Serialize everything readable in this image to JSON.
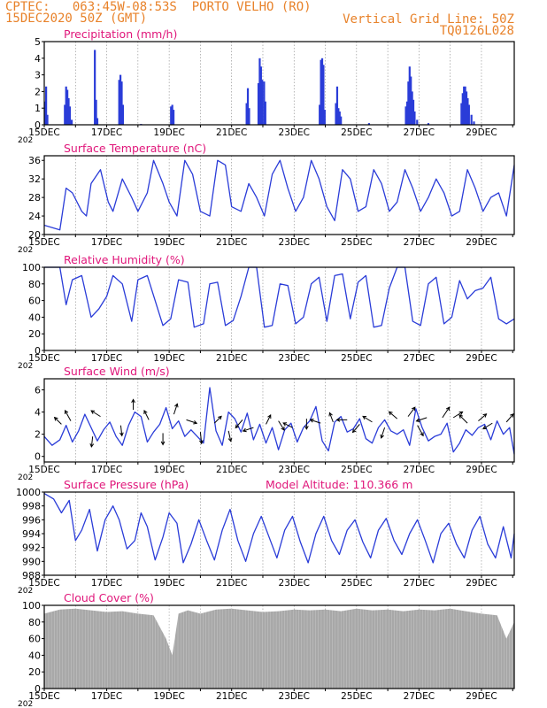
{
  "header": {
    "station": "CPTEC:   063:45W-08:53S  PORTO VELHO (RO)",
    "run": "15DEC2020 50Z (GMT)",
    "grid_note": "Vertical Grid Line: 50Z",
    "code": "TQ0126L028"
  },
  "colors": {
    "header": "#e8822a",
    "title": "#e0167a",
    "series": "#2a3cd8",
    "cloud": "#a8a8a8",
    "grid": "#888888"
  },
  "x_labels": [
    "15DEC",
    "17DEC",
    "19DEC",
    "21DEC",
    "23DEC",
    "25DEC",
    "27DEC",
    "29DEC"
  ],
  "x_year_fragment": "202",
  "chart_data": [
    {
      "id": "precip",
      "type": "bar",
      "title": "Precipitation (mm/h)",
      "ylim": [
        0,
        5
      ],
      "yticks": [
        0,
        1,
        2,
        3,
        4,
        5
      ],
      "x_unit": "days since 15DEC",
      "bars": [
        [
          0.02,
          1.4
        ],
        [
          0.06,
          2.3
        ],
        [
          0.1,
          0.6
        ],
        [
          0.66,
          1.2
        ],
        [
          0.7,
          2.3
        ],
        [
          0.74,
          2.1
        ],
        [
          0.78,
          1.6
        ],
        [
          0.82,
          1.1
        ],
        [
          0.88,
          0.3
        ],
        [
          1.62,
          4.5
        ],
        [
          1.66,
          1.5
        ],
        [
          1.7,
          0.4
        ],
        [
          2.4,
          2.7
        ],
        [
          2.44,
          3.0
        ],
        [
          2.48,
          2.6
        ],
        [
          2.52,
          1.2
        ],
        [
          4.06,
          1.1
        ],
        [
          4.1,
          1.2
        ],
        [
          4.14,
          0.9
        ],
        [
          6.48,
          1.3
        ],
        [
          6.52,
          2.2
        ],
        [
          6.56,
          1.0
        ],
        [
          6.86,
          2.5
        ],
        [
          6.9,
          4.0
        ],
        [
          6.94,
          3.5
        ],
        [
          6.98,
          2.7
        ],
        [
          7.04,
          2.6
        ],
        [
          7.08,
          1.4
        ],
        [
          8.82,
          1.2
        ],
        [
          8.86,
          3.9
        ],
        [
          8.9,
          4.0
        ],
        [
          8.94,
          3.6
        ],
        [
          8.98,
          0.9
        ],
        [
          9.34,
          1.3
        ],
        [
          9.38,
          2.3
        ],
        [
          9.42,
          1.0
        ],
        [
          9.46,
          0.8
        ],
        [
          9.5,
          0.5
        ],
        [
          11.58,
          1.1
        ],
        [
          11.62,
          1.4
        ],
        [
          11.66,
          2.6
        ],
        [
          11.7,
          3.5
        ],
        [
          11.74,
          2.9
        ],
        [
          11.78,
          2.0
        ],
        [
          11.82,
          1.5
        ],
        [
          11.86,
          0.8
        ],
        [
          11.94,
          0.3
        ],
        [
          13.36,
          1.3
        ],
        [
          13.4,
          1.9
        ],
        [
          13.44,
          2.3
        ],
        [
          13.48,
          2.3
        ],
        [
          13.52,
          2.0
        ],
        [
          13.56,
          1.6
        ],
        [
          13.6,
          1.2
        ],
        [
          13.68,
          0.6
        ],
        [
          13.76,
          0.2
        ],
        [
          12.3,
          0.1
        ],
        [
          3.1,
          0.05
        ],
        [
          10.4,
          0.1
        ]
      ]
    },
    {
      "id": "temp",
      "type": "line",
      "title": "Surface Temperature (nC)",
      "ylim": [
        20,
        37
      ],
      "yticks": [
        20,
        24,
        28,
        32,
        36
      ],
      "x": [
        0,
        0.5,
        0.7,
        0.9,
        1.2,
        1.35,
        1.5,
        1.8,
        2.05,
        2.2,
        2.5,
        2.8,
        3.0,
        3.3,
        3.5,
        3.8,
        4.0,
        4.25,
        4.5,
        4.75,
        5.0,
        5.3,
        5.55,
        5.8,
        6.0,
        6.3,
        6.55,
        6.8,
        7.05,
        7.3,
        7.55,
        7.8,
        8.05,
        8.3,
        8.55,
        8.8,
        9.05,
        9.3,
        9.55,
        9.8,
        10.05,
        10.3,
        10.55,
        10.8,
        11.05,
        11.3,
        11.55,
        11.8,
        12.05,
        12.3,
        12.55,
        12.8,
        13.05,
        13.3,
        13.55,
        13.8,
        14.05,
        14.3,
        14.55,
        14.8,
        15.05
      ],
      "y": [
        22,
        21,
        30,
        29,
        25,
        24,
        31,
        34,
        27,
        25,
        32,
        28,
        25,
        29,
        36,
        31,
        27,
        24,
        36,
        33,
        25,
        24,
        36,
        35,
        26,
        25,
        31,
        28,
        24,
        33,
        36,
        30,
        25,
        28,
        36,
        32,
        26,
        23,
        34,
        32,
        25,
        26,
        34,
        31,
        25,
        27,
        34,
        30,
        25,
        28,
        32,
        29,
        24,
        25,
        34,
        30,
        25,
        28,
        29,
        24,
        35
      ]
    },
    {
      "id": "rh",
      "type": "line",
      "title": "Relative Humidity (%)",
      "ylim": [
        0,
        100
      ],
      "yticks": [
        0,
        20,
        40,
        60,
        80,
        100
      ],
      "x": [
        0,
        0.5,
        0.7,
        0.9,
        1.2,
        1.5,
        1.75,
        2.0,
        2.2,
        2.5,
        2.8,
        3.0,
        3.3,
        3.55,
        3.8,
        4.05,
        4.3,
        4.6,
        4.8,
        5.1,
        5.3,
        5.55,
        5.8,
        6.05,
        6.3,
        6.55,
        6.8,
        7.05,
        7.3,
        7.55,
        7.8,
        8.05,
        8.3,
        8.55,
        8.8,
        9.05,
        9.3,
        9.55,
        9.8,
        10.05,
        10.3,
        10.55,
        10.8,
        11.05,
        11.3,
        11.55,
        11.8,
        12.05,
        12.3,
        12.55,
        12.8,
        13.05,
        13.3,
        13.55,
        13.8,
        14.05,
        14.3,
        14.55,
        14.8,
        15.05
      ],
      "y": [
        100,
        100,
        55,
        85,
        90,
        40,
        50,
        65,
        90,
        80,
        35,
        85,
        90,
        60,
        30,
        38,
        85,
        82,
        28,
        32,
        80,
        82,
        30,
        36,
        65,
        100,
        100,
        28,
        30,
        80,
        78,
        32,
        40,
        80,
        88,
        35,
        90,
        92,
        38,
        82,
        90,
        28,
        30,
        75,
        100,
        100,
        35,
        30,
        80,
        88,
        32,
        40,
        84,
        62,
        72,
        75,
        88,
        38,
        32,
        38
      ]
    },
    {
      "id": "wind",
      "type": "line",
      "title": "Surface Wind (m/s)",
      "ylim": [
        -0.5,
        7
      ],
      "yticks": [
        0,
        2,
        4,
        6
      ],
      "x": [
        0,
        0.25,
        0.5,
        0.7,
        0.9,
        1.1,
        1.3,
        1.5,
        1.7,
        1.9,
        2.1,
        2.3,
        2.5,
        2.7,
        2.9,
        3.1,
        3.3,
        3.5,
        3.7,
        3.9,
        4.1,
        4.3,
        4.5,
        4.7,
        4.9,
        5.1,
        5.3,
        5.5,
        5.7,
        5.9,
        6.1,
        6.3,
        6.5,
        6.7,
        6.9,
        7.1,
        7.3,
        7.5,
        7.7,
        7.9,
        8.1,
        8.3,
        8.5,
        8.7,
        8.9,
        9.1,
        9.3,
        9.5,
        9.7,
        9.9,
        10.1,
        10.3,
        10.5,
        10.7,
        10.9,
        11.1,
        11.3,
        11.5,
        11.7,
        11.9,
        12.1,
        12.3,
        12.5,
        12.7,
        12.9,
        13.1,
        13.3,
        13.5,
        13.7,
        13.9,
        14.1,
        14.3,
        14.5,
        14.7,
        14.9,
        15.05
      ],
      "y": [
        1.8,
        1.0,
        1.5,
        2.8,
        1.3,
        2.3,
        3.8,
        2.6,
        1.4,
        2.4,
        3.1,
        1.8,
        1.0,
        2.8,
        4.0,
        3.6,
        1.3,
        2.2,
        2.9,
        4.4,
        2.5,
        3.2,
        1.8,
        2.4,
        1.8,
        1.2,
        6.2,
        2.3,
        1.0,
        4.0,
        3.4,
        2.2,
        3.9,
        1.5,
        2.9,
        1.2,
        2.6,
        0.6,
        2.4,
        3.0,
        1.3,
        2.6,
        3.2,
        4.5,
        1.4,
        0.5,
        3.1,
        3.6,
        2.2,
        2.5,
        3.4,
        1.6,
        1.2,
        2.6,
        3.3,
        2.3,
        2.0,
        2.4,
        1.0,
        4.3,
        2.6,
        1.4,
        1.8,
        2.0,
        3.0,
        0.4,
        1.2,
        2.4,
        1.9,
        2.6,
        2.9,
        1.5,
        3.2,
        2.0,
        2.6,
        0.2
      ],
      "arrows": [
        [
          0.55,
          2.9,
          -0.6,
          0.6
        ],
        [
          0.85,
          3.2,
          -0.5,
          0.9
        ],
        [
          1.55,
          1.8,
          -0.1,
          -0.9
        ],
        [
          1.8,
          3.6,
          -0.8,
          0.5
        ],
        [
          2.45,
          2.8,
          0.1,
          -0.9
        ],
        [
          2.85,
          4.2,
          0.0,
          0.9
        ],
        [
          3.35,
          3.3,
          -0.4,
          0.8
        ],
        [
          3.8,
          2.1,
          0.0,
          -1.0
        ],
        [
          4.15,
          3.8,
          0.3,
          0.9
        ],
        [
          4.55,
          3.3,
          0.9,
          -0.3
        ],
        [
          5.0,
          2.2,
          0.1,
          -1.0
        ],
        [
          5.45,
          3.0,
          0.6,
          0.6
        ],
        [
          5.9,
          2.3,
          0.2,
          -0.9
        ],
        [
          6.35,
          3.3,
          -0.6,
          -0.7
        ],
        [
          6.7,
          2.6,
          -0.9,
          -0.3
        ],
        [
          7.1,
          2.9,
          0.4,
          0.8
        ],
        [
          7.5,
          3.2,
          0.5,
          -0.8
        ],
        [
          7.95,
          2.6,
          -0.8,
          0.4
        ],
        [
          8.4,
          3.4,
          0.0,
          -0.9
        ],
        [
          8.85,
          3.0,
          -0.9,
          0.3
        ],
        [
          9.25,
          3.1,
          -0.3,
          0.8
        ],
        [
          9.7,
          3.3,
          -0.9,
          0.0
        ],
        [
          10.1,
          2.9,
          -0.6,
          -0.7
        ],
        [
          10.5,
          3.1,
          -0.8,
          0.5
        ],
        [
          10.9,
          2.6,
          -0.3,
          -0.9
        ],
        [
          11.3,
          3.4,
          -0.7,
          0.6
        ],
        [
          11.65,
          3.6,
          0.6,
          0.8
        ],
        [
          11.95,
          2.8,
          0.5,
          -0.9
        ],
        [
          12.25,
          3.5,
          -0.9,
          -0.3
        ],
        [
          12.75,
          3.5,
          0.6,
          0.9
        ],
        [
          13.1,
          3.5,
          0.8,
          0.5
        ],
        [
          13.55,
          3.0,
          -0.7,
          0.7
        ],
        [
          13.9,
          3.2,
          0.7,
          0.6
        ],
        [
          14.35,
          3.0,
          -0.8,
          -0.5
        ],
        [
          14.8,
          3.1,
          0.6,
          0.7
        ]
      ]
    },
    {
      "id": "press",
      "type": "line",
      "title": "Surface Pressure (hPa)",
      "annotation": "Model Altitude: 110.366 m",
      "ylim": [
        988,
        1000
      ],
      "yticks": [
        988,
        990,
        992,
        994,
        996,
        998,
        1000
      ],
      "x": [
        0,
        0.3,
        0.55,
        0.8,
        1.0,
        1.2,
        1.45,
        1.7,
        1.95,
        2.2,
        2.4,
        2.65,
        2.9,
        3.1,
        3.3,
        3.55,
        3.8,
        4.0,
        4.25,
        4.45,
        4.7,
        4.95,
        5.2,
        5.45,
        5.7,
        5.95,
        6.2,
        6.45,
        6.7,
        6.95,
        7.2,
        7.45,
        7.7,
        7.95,
        8.2,
        8.45,
        8.7,
        8.95,
        9.2,
        9.45,
        9.7,
        9.95,
        10.2,
        10.45,
        10.7,
        10.95,
        11.2,
        11.45,
        11.7,
        11.95,
        12.2,
        12.45,
        12.7,
        12.95,
        13.2,
        13.45,
        13.7,
        13.95,
        14.2,
        14.45,
        14.7,
        14.95,
        15.05
      ],
      "y": [
        999.8,
        999,
        997,
        998.8,
        993,
        994.5,
        997.5,
        991.5,
        996,
        998,
        996,
        991.8,
        993,
        997,
        995,
        990.2,
        993.5,
        997,
        995.5,
        989.8,
        992.5,
        996,
        993,
        990.2,
        994.5,
        997.5,
        993,
        990,
        994,
        996.5,
        993.5,
        990.5,
        994.5,
        996.5,
        992.8,
        989.8,
        994,
        996.5,
        993,
        991,
        994.5,
        996,
        992.8,
        990.5,
        994.5,
        996.2,
        993,
        991,
        994,
        996,
        993,
        989.8,
        994,
        995.5,
        992.5,
        990.5,
        994.5,
        996.5,
        992.5,
        990.5,
        995,
        990.5,
        994
      ]
    },
    {
      "id": "cloud",
      "type": "area",
      "title": "Cloud Cover (%)",
      "ylim": [
        0,
        100
      ],
      "yticks": [
        0,
        20,
        40,
        60,
        80,
        100
      ],
      "x": [
        0,
        0.5,
        1.0,
        1.5,
        2.0,
        2.5,
        3.0,
        3.5,
        3.9,
        4.1,
        4.3,
        4.6,
        5.0,
        5.5,
        6.0,
        6.5,
        7.0,
        7.5,
        8.0,
        8.5,
        9.0,
        9.5,
        10.0,
        10.5,
        11.0,
        11.5,
        12.0,
        12.5,
        13.0,
        13.5,
        14.0,
        14.5,
        14.8,
        15.05
      ],
      "y": [
        90,
        95,
        96,
        94,
        92,
        93,
        90,
        88,
        60,
        40,
        90,
        94,
        90,
        95,
        96,
        94,
        92,
        93,
        95,
        94,
        95,
        93,
        96,
        94,
        95,
        93,
        95,
        94,
        96,
        93,
        90,
        88,
        60,
        80
      ]
    }
  ]
}
